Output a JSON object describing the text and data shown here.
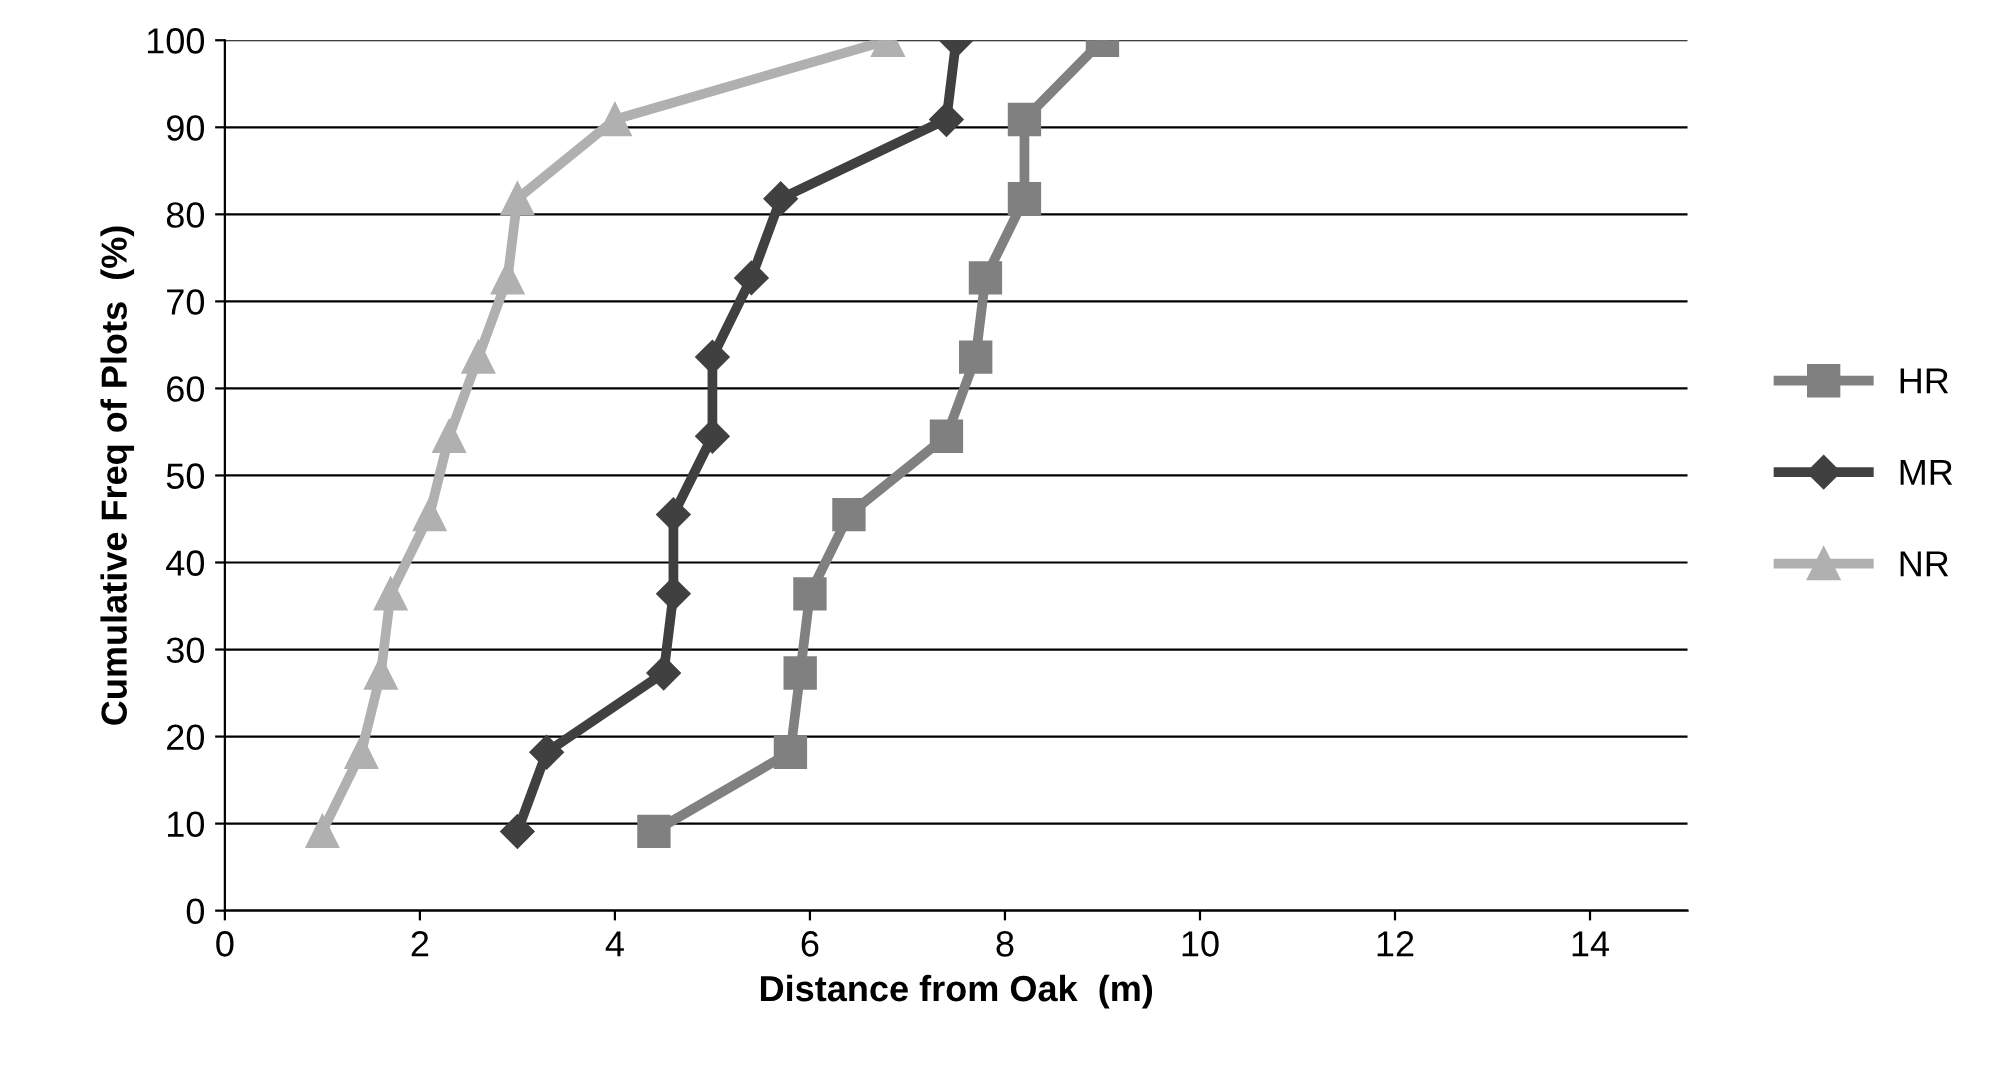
{
  "chart_data": {
    "type": "line",
    "xlabel": "Distance from Oak  (m)",
    "ylabel": "Cumulative Freq of Plots  (%)",
    "xlim": [
      0,
      15
    ],
    "xticks": [
      0,
      2,
      4,
      6,
      8,
      10,
      12,
      14
    ],
    "ylim": [
      0,
      100
    ],
    "yticks": [
      0,
      10,
      20,
      30,
      40,
      50,
      60,
      70,
      80,
      90,
      100
    ],
    "grid": "y",
    "legend": "right",
    "line_style": "solid",
    "series": [
      {
        "name": "HR",
        "color": "#808080",
        "marker": "square",
        "x": [
          4.4,
          5.8,
          5.9,
          6.0,
          6.4,
          7.4,
          7.7,
          7.8,
          8.2,
          8.2,
          9.0
        ],
        "values": [
          9.1,
          18.2,
          27.3,
          36.4,
          45.5,
          54.5,
          63.6,
          72.7,
          81.8,
          90.9,
          100
        ]
      },
      {
        "name": "MR",
        "color": "#404040",
        "marker": "diamond",
        "x": [
          3.0,
          3.3,
          4.5,
          4.6,
          4.6,
          5.0,
          5.0,
          5.4,
          5.7,
          7.4,
          7.5
        ],
        "values": [
          9.1,
          18.2,
          27.3,
          36.4,
          45.5,
          54.5,
          63.6,
          72.7,
          81.8,
          90.9,
          100
        ]
      },
      {
        "name": "NR",
        "color": "#b0b0b0",
        "marker": "triangle",
        "x": [
          1.0,
          1.4,
          1.6,
          1.7,
          2.1,
          2.3,
          2.6,
          2.9,
          3.0,
          4.0,
          6.8
        ],
        "values": [
          9.1,
          18.2,
          27.3,
          36.4,
          45.5,
          54.5,
          63.6,
          72.7,
          81.8,
          90.9,
          100
        ]
      }
    ]
  }
}
